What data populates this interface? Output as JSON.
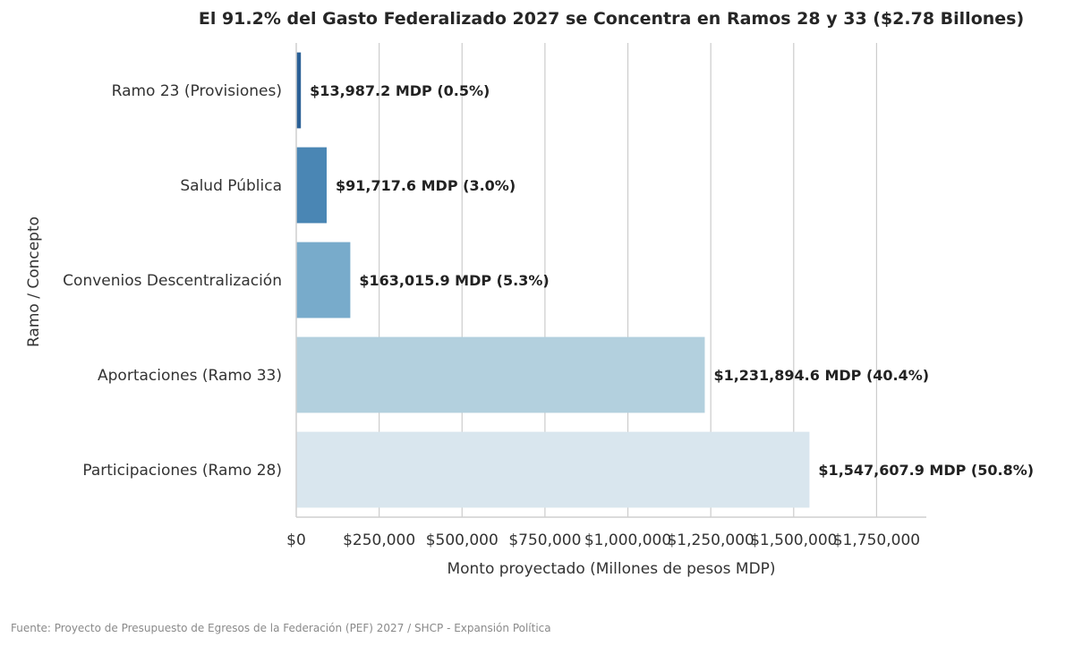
{
  "chart_data": {
    "type": "bar",
    "orientation": "horizontal",
    "title": "El 91.2% del Gasto Federalizado 2027 se Concentra en Ramos 28 y 33 ($2.78 Billones)",
    "xlabel": "Monto proyectado (Millones de pesos MDP)",
    "ylabel": "Ramo / Concepto",
    "categories": [
      "Ramo 23 (Provisiones)",
      "Salud Pública",
      "Convenios Descentralización",
      "Aportaciones (Ramo 33)",
      "Participaciones (Ramo 28)"
    ],
    "values": [
      13987.2,
      91717.6,
      163015.9,
      1231894.6,
      1547607.9
    ],
    "data_labels": [
      "$13,987.2 MDP (0.5%)",
      "$91,717.6 MDP (3.0%)",
      "$163,015.9 MDP (5.3%)",
      "$1,231,894.6 MDP (40.4%)",
      "$1,547,607.9 MDP (50.8%)"
    ],
    "bar_colors": [
      "#2b6096",
      "#4a86b4",
      "#78abcb",
      "#b3d0de",
      "#d9e6ee"
    ],
    "xlim": [
      0,
      1900000
    ],
    "xticks": [
      0,
      250000,
      500000,
      750000,
      1000000,
      1250000,
      1500000,
      1750000
    ],
    "xtick_labels": [
      "$0",
      "$250,000",
      "$500,000",
      "$750,000",
      "$1,000,000",
      "$1,250,000",
      "$1,500,000",
      "$1,750,000"
    ],
    "grid": "vertical",
    "legend": "none"
  },
  "footer": {
    "source": "Fuente: Proyecto de Presupuesto de Egresos de la Federación (PEF) 2027 / SHCP - Expansión Política"
  }
}
